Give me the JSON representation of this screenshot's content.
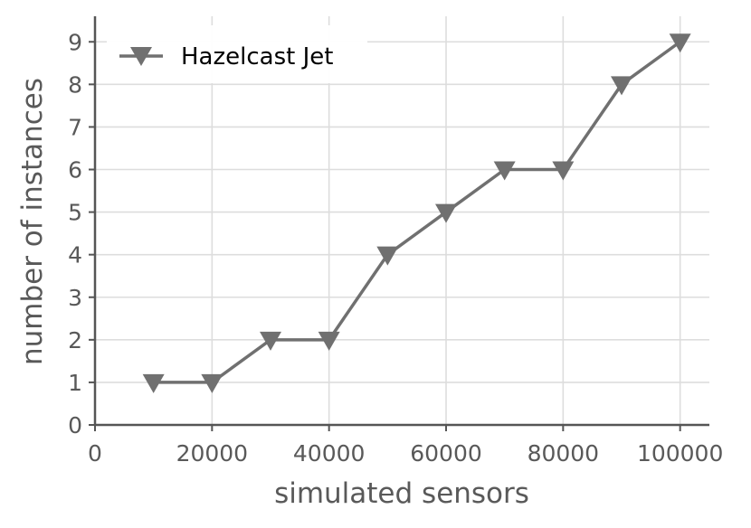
{
  "chart_data": {
    "type": "line",
    "title": "",
    "xlabel": "simulated sensors",
    "ylabel": "number of instances",
    "xlim": [
      0,
      105000
    ],
    "ylim": [
      0,
      9.6
    ],
    "xticks": [
      0,
      20000,
      40000,
      60000,
      80000,
      100000
    ],
    "yticks": [
      0,
      1,
      2,
      3,
      4,
      5,
      6,
      7,
      8,
      9
    ],
    "grid": true,
    "legend_position": "top-left",
    "series": [
      {
        "name": "Hazelcast Jet",
        "color": "#707070",
        "marker": "triangle-down",
        "x": [
          10000,
          20000,
          30000,
          40000,
          50000,
          60000,
          70000,
          80000,
          90000,
          100000
        ],
        "y": [
          1,
          1,
          2,
          2,
          4,
          5,
          6,
          6,
          8,
          9
        ]
      }
    ]
  }
}
